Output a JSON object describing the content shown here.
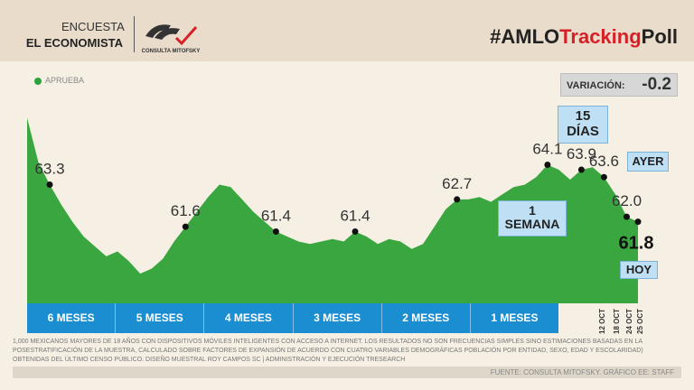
{
  "header": {
    "brand_line1": "ENCUESTA",
    "brand_line2": "EL ECONOMISTA",
    "logo_text": "CONSULTA MITOFSKY",
    "hashtag_prefix": "#AMLO",
    "hashtag_accent": "Tracking",
    "hashtag_suffix": "Poll"
  },
  "legend_label": "APRUEBA",
  "variation": {
    "label": "VARIACIÓN:",
    "value": "-0.2"
  },
  "callouts": {
    "fifteen_days_num": "15",
    "fifteen_days_word": "DÍAS",
    "one_week_num": "1",
    "one_week_word": "SEMANA",
    "yesterday": "AYER",
    "today": "HOY"
  },
  "periods": [
    "6 MESES",
    "5 MESES",
    "4 MESES",
    "3 MESES",
    "2 MESES",
    "1 MESES"
  ],
  "date_labels": [
    "12 OCT",
    "18 OCT",
    "24 OCT",
    "25 OCT"
  ],
  "footnote": "1,000 MEXICANOS MAYORES DE 18 AÑOS CON DISPOSITIVOS MÓVILES INTELIGENTES CON ACCESO A INTERNET. LOS RESULTADOS NO SON FRECUENCIAS SIMPLES SINO ESTIMACIONES BASADAS EN LA POSESTRATIFICACIÓN DE LA MUESTRA, CALCULADO SOBRE FACTORES DE EXPANSIÓN DE ACUERDO CON CUATRO VARIABLES DEMOGRÁFICAS POBLACIÓN POR ENTIDAD, SEXO, EDAD Y ESCOLARIDAD) OBTENIDAS DEL ÚLTIMO CENSO PÚBLICO. DISEÑO MUESTRAL ROY CAMPOS SC | ADMINISTRACIÓN Y EJECUCIÓN TRESEARCH",
  "source": "FUENTE: CONSULTA MITOFSKY. GRÁFICO EE: STAFF",
  "colors": {
    "area": "#3aa63f",
    "period_bar": "#1a8ed1",
    "header": "#e9dccb",
    "accent": "#d62027"
  },
  "chart_data": {
    "type": "area",
    "series": [
      {
        "name": "APRUEBA",
        "values": [
          66.0,
          64.2,
          63.3,
          62.5,
          61.8,
          61.2,
          60.8,
          60.4,
          60.6,
          60.2,
          59.7,
          59.9,
          60.3,
          61.0,
          61.6,
          62.2,
          62.8,
          63.3,
          63.2,
          62.7,
          62.2,
          61.8,
          61.4,
          61.2,
          61.0,
          60.9,
          61.0,
          61.1,
          61.0,
          61.4,
          61.2,
          60.9,
          61.1,
          61.0,
          60.7,
          60.9,
          61.6,
          62.3,
          62.7,
          62.7,
          62.8,
          62.6,
          62.9,
          63.2,
          63.3,
          63.6,
          64.1,
          63.9,
          63.5,
          63.9,
          64.0,
          63.6,
          62.9,
          62.0,
          61.8
        ]
      }
    ],
    "labeled_points": [
      {
        "index": 2,
        "value": 63.3
      },
      {
        "index": 14,
        "value": 61.6
      },
      {
        "index": 22,
        "value": 61.4
      },
      {
        "index": 29,
        "value": 61.4
      },
      {
        "index": 38,
        "value": 62.7
      },
      {
        "index": 46,
        "value": 64.1
      },
      {
        "index": 49,
        "value": 63.9
      },
      {
        "index": 51,
        "value": 63.6
      },
      {
        "index": 53,
        "value": 62.0
      },
      {
        "index": 54,
        "value": 61.8
      }
    ],
    "ylim": [
      58.5,
      66.2
    ],
    "grid": false,
    "legend": "top-left"
  }
}
